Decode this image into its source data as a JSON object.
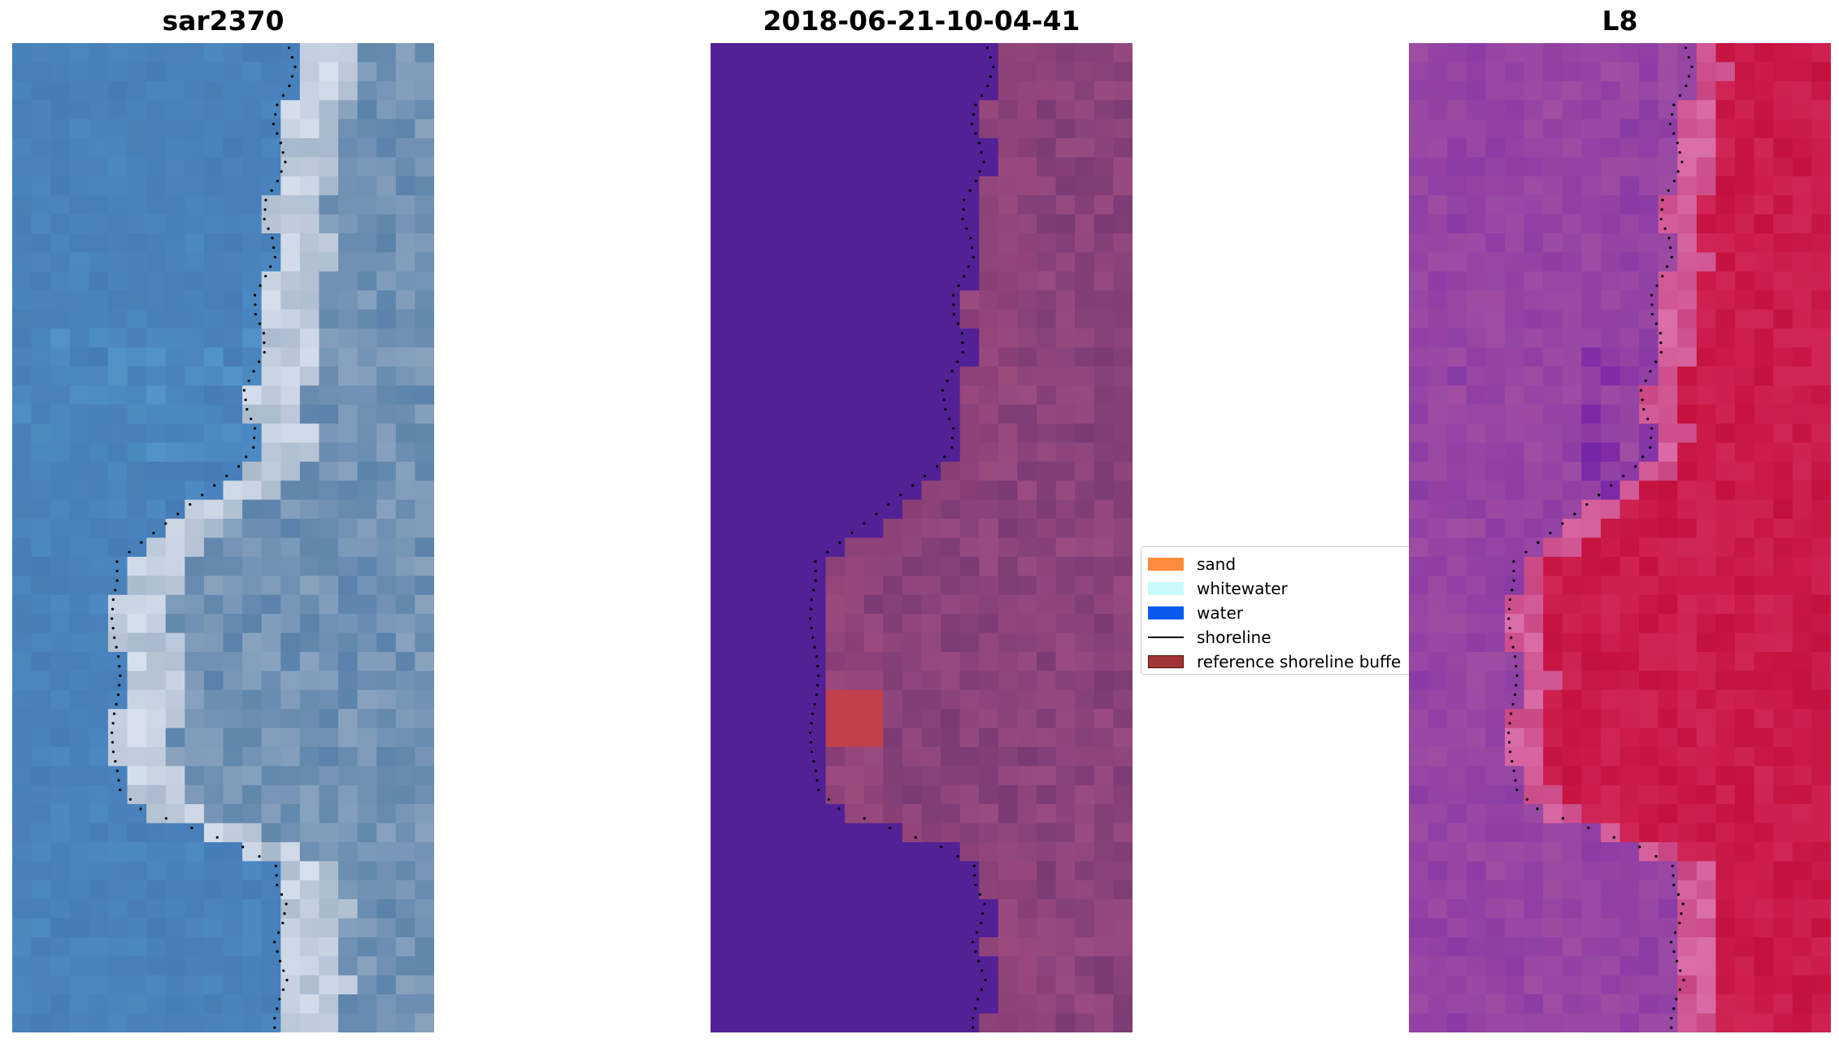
{
  "panels": [
    {
      "title": "sar2370",
      "image": "rgb"
    },
    {
      "title": "2018-06-21-10-04-41",
      "image": "classified"
    },
    {
      "title": "L8",
      "image": "false-color"
    }
  ],
  "legend": {
    "items": [
      {
        "label": "sand",
        "color": "#ff8c3c",
        "kind": "patch"
      },
      {
        "label": "whitewater",
        "color": "#c8fafa",
        "kind": "patch"
      },
      {
        "label": "water",
        "color": "#0a5af0",
        "kind": "patch"
      },
      {
        "label": "shoreline",
        "color": "#000000",
        "kind": "line"
      },
      {
        "label": "reference shoreline buffe",
        "color": "#a03535",
        "kind": "buffer"
      }
    ]
  },
  "colors": {
    "water_class": "#522196",
    "sand_class": "#7a3a74",
    "buffer_class": "#c0404c",
    "rgb_water": "#4a82bd",
    "rgb_sand": "#a8b8cc",
    "l8_water": "#9a4ca4",
    "l8_land": "#c4103e",
    "shoreline": "#000000"
  }
}
